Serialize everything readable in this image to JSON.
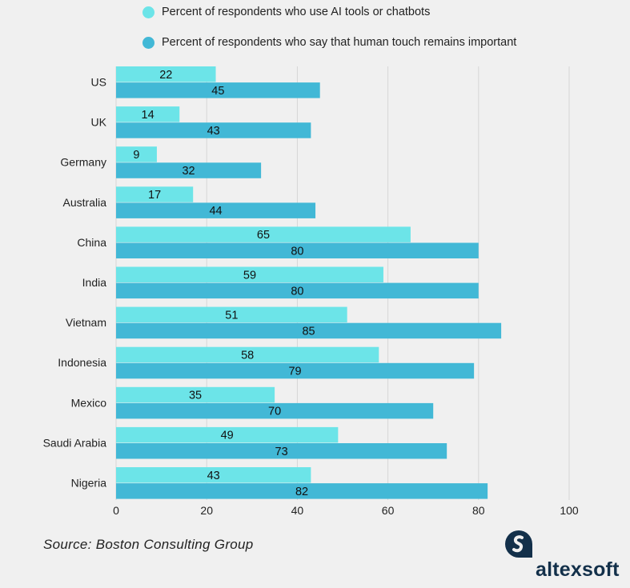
{
  "chart_data": {
    "type": "bar",
    "orientation": "horizontal",
    "categories": [
      "US",
      "UK",
      "Germany",
      "Australia",
      "China",
      "India",
      "Vietnam",
      "Indonesia",
      "Mexico",
      "Saudi Arabia",
      "Nigeria"
    ],
    "series": [
      {
        "name": "Percent of respondents who use AI tools or chatbots",
        "color": "#6ce4e8",
        "values": [
          22,
          14,
          9,
          17,
          65,
          59,
          51,
          58,
          35,
          49,
          43
        ]
      },
      {
        "name": "Percent of respondents who say that human touch remains important",
        "color": "#42b8d6",
        "values": [
          45,
          43,
          32,
          44,
          80,
          80,
          85,
          79,
          70,
          73,
          82
        ]
      }
    ],
    "xlim": [
      0,
      100
    ],
    "xticks": [
      "0",
      "20",
      "40",
      "60",
      "80",
      "100"
    ],
    "grid": true,
    "legend_position": "top",
    "data_labels": true
  },
  "source": "Source: Boston Consulting Group",
  "logo": {
    "text": "altexsoft",
    "color": "#13304a"
  }
}
